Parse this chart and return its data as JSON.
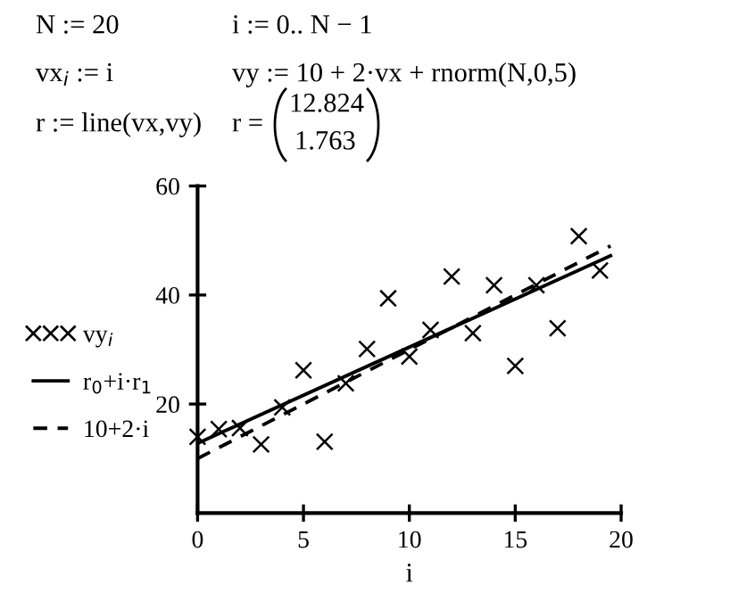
{
  "chart_data": {
    "type": "scatter",
    "xlabel": "i",
    "annotations": [
      "N := 20",
      "i := 0.. N − 1",
      "vx$_{i}$ := i",
      "vy := 10 + 2·vx + rnorm(N,0,5)",
      "r := line(vx,vy)",
      "r =",
      "12.824",
      "1.763"
    ],
    "xlim": [
      0,
      20
    ],
    "xticks": [
      0,
      5,
      10,
      15,
      20
    ],
    "ylim": [
      0,
      60
    ],
    "yticks": [
      20,
      40,
      60
    ],
    "grid": false,
    "legend": "left",
    "series": [
      {
        "name": "vy$_{i}$",
        "marker": "cross",
        "color": "#000000",
        "x": [
          0,
          1,
          2,
          3,
          4,
          5,
          6,
          7,
          8,
          9,
          10,
          11,
          12,
          13,
          14,
          15,
          16,
          17,
          18,
          19
        ],
        "values": [
          14,
          15.4,
          15.6,
          12.6,
          19.4,
          26.2,
          13.1,
          23.8,
          30.1,
          39.4,
          28.7,
          33.6,
          43.4,
          33,
          41.8,
          27,
          41.8,
          33.9,
          50.8,
          44.5
        ]
      },
      {
        "name": "r$_{0}$+i·r$_{1}$",
        "type": "line",
        "line_style": "solid",
        "color": "#000000",
        "x": [
          0,
          19.5
        ],
        "values": [
          12.8,
          47.2
        ]
      },
      {
        "name": "10+2·i",
        "type": "line",
        "line_style": "dashed",
        "color": "#000000",
        "x": [
          0,
          19.5
        ],
        "values": [
          10,
          49
        ]
      }
    ]
  }
}
